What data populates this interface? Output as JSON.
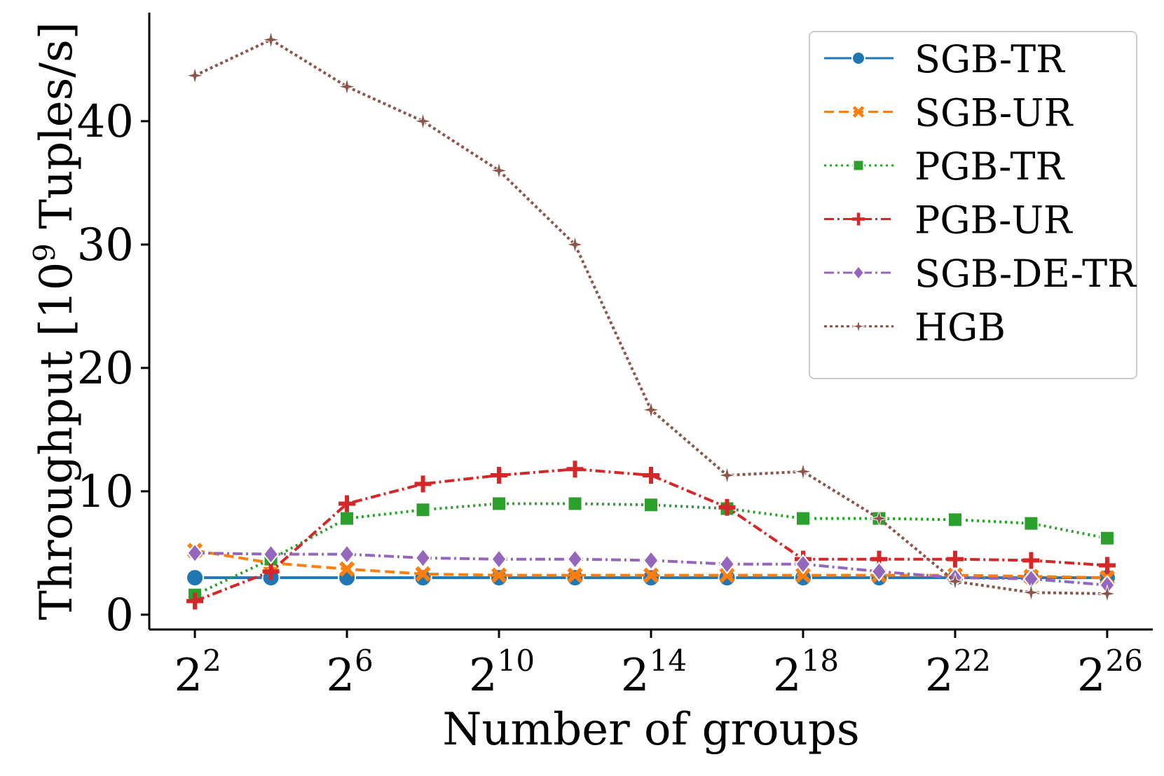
{
  "chart_data": {
    "type": "line",
    "xlabel": "Number of groups",
    "ylabel_prefix": "Throughput [10",
    "ylabel_exp": "9",
    "ylabel_suffix": " Tuples/s]",
    "x": [
      2,
      4,
      6,
      8,
      10,
      12,
      14,
      16,
      18,
      20,
      22,
      24,
      26
    ],
    "x_scale": "log2",
    "x_ticks": [
      {
        "value": 2,
        "base": "2",
        "exp": "2"
      },
      {
        "value": 6,
        "base": "2",
        "exp": "6"
      },
      {
        "value": 10,
        "base": "2",
        "exp": "10"
      },
      {
        "value": 14,
        "base": "2",
        "exp": "14"
      },
      {
        "value": 18,
        "base": "2",
        "exp": "18"
      },
      {
        "value": 22,
        "base": "2",
        "exp": "22"
      },
      {
        "value": 26,
        "base": "2",
        "exp": "26"
      }
    ],
    "y_ticks": [
      "0",
      "10",
      "20",
      "30",
      "40"
    ],
    "xlim": [
      0.8,
      27.2
    ],
    "ylim": [
      -1.2,
      48.8
    ],
    "grid": false,
    "legend_position": "top-right",
    "series": [
      {
        "name": "SGB-TR",
        "color": "#1f77b4",
        "marker": "circle",
        "dash": "solid",
        "values": [
          3.0,
          3.0,
          3.0,
          3.0,
          3.0,
          3.0,
          3.0,
          3.0,
          3.0,
          3.0,
          3.0,
          3.0,
          3.0
        ]
      },
      {
        "name": "SGB-UR",
        "color": "#ff7f0e",
        "marker": "x",
        "dash": "dashed",
        "values": [
          5.2,
          4.2,
          3.7,
          3.3,
          3.2,
          3.2,
          3.2,
          3.2,
          3.2,
          3.2,
          3.2,
          3.1,
          3.0
        ]
      },
      {
        "name": "PGB-TR",
        "color": "#2ca02c",
        "marker": "square",
        "dash": "dotted",
        "values": [
          1.6,
          4.5,
          7.8,
          8.5,
          9.0,
          9.0,
          8.9,
          8.6,
          7.8,
          7.8,
          7.7,
          7.4,
          6.2
        ]
      },
      {
        "name": "PGB-UR",
        "color": "#d62728",
        "marker": "plus",
        "dash": "dashdot",
        "values": [
          1.1,
          3.5,
          9.0,
          10.6,
          11.3,
          11.8,
          11.3,
          8.7,
          4.5,
          4.5,
          4.5,
          4.4,
          4.0
        ]
      },
      {
        "name": "SGB-DE-TR",
        "color": "#9467bd",
        "marker": "diamond",
        "dash": "dashdot",
        "values": [
          5.0,
          4.9,
          4.9,
          4.6,
          4.5,
          4.5,
          4.4,
          4.1,
          4.1,
          3.5,
          3.0,
          2.9,
          2.4
        ]
      },
      {
        "name": "HGB",
        "color": "#8c564b",
        "marker": "star",
        "dash": "densedot",
        "values": [
          43.7,
          46.6,
          42.8,
          40.0,
          36.0,
          30.0,
          16.6,
          11.3,
          11.6,
          7.8,
          2.7,
          1.8,
          1.7
        ]
      }
    ]
  }
}
